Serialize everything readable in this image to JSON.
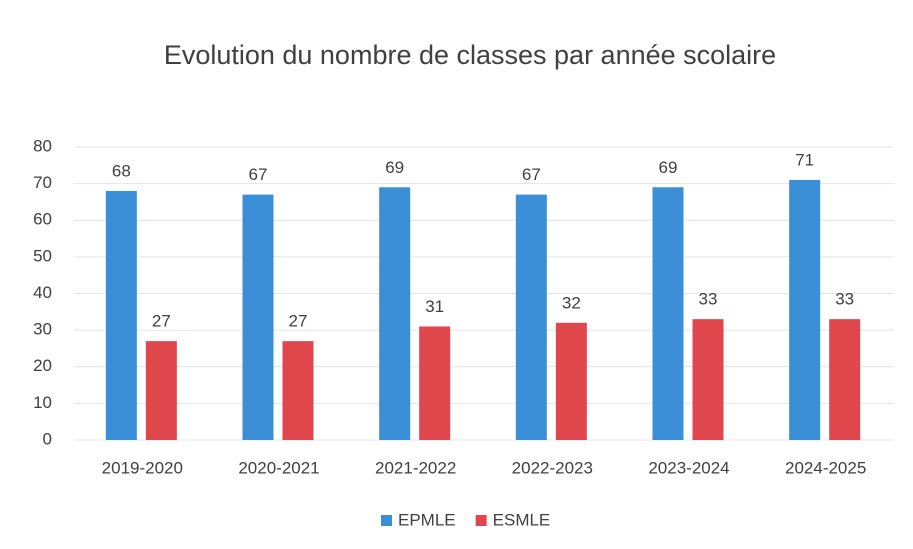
{
  "chart_data": {
    "type": "bar",
    "title": "Evolution du nombre de classes par année scolaire",
    "categories": [
      "2019-2020",
      "2020-2021",
      "2021-2022",
      "2022-2023",
      "2023-2024",
      "2024-2025"
    ],
    "series": [
      {
        "name": "EPMLE",
        "color": "#3a8fd6",
        "values": [
          68,
          67,
          69,
          67,
          69,
          71
        ]
      },
      {
        "name": "ESMLE",
        "color": "#e0474c",
        "values": [
          27,
          27,
          31,
          32,
          33,
          33
        ]
      }
    ],
    "ylim": [
      0,
      80
    ],
    "yticks": [
      0,
      10,
      20,
      30,
      40,
      50,
      60,
      70,
      80
    ],
    "grid": true,
    "legend": "bottom"
  }
}
